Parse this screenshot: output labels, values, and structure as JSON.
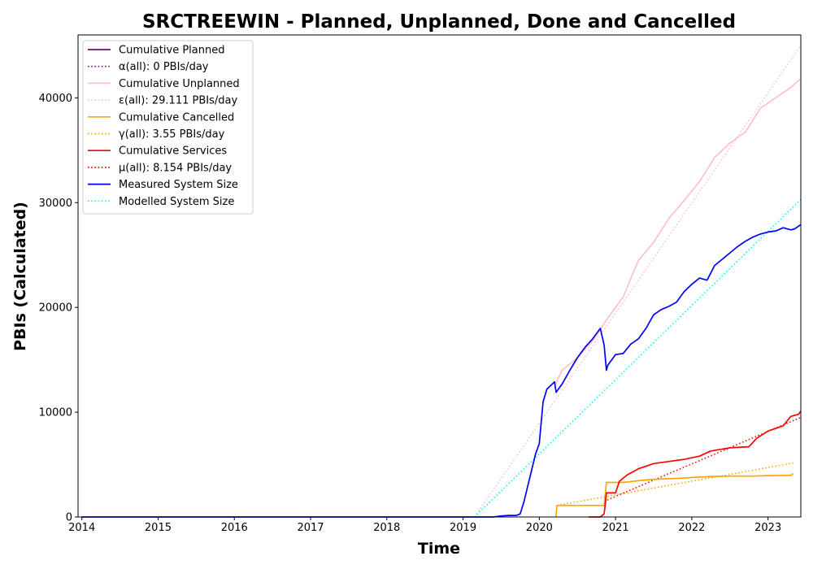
{
  "chart_data": {
    "type": "line",
    "title": "SRCTREEWIN - Planned, Unplanned, Done  and Cancelled",
    "xlabel": "Time",
    "ylabel": "PBIs (Calculated)",
    "xlim": [
      2013.95,
      2023.43
    ],
    "ylim": [
      0,
      46000
    ],
    "x_ticks": [
      2014,
      2015,
      2016,
      2017,
      2018,
      2019,
      2020,
      2021,
      2022,
      2023
    ],
    "y_ticks": [
      0,
      10000,
      20000,
      30000,
      40000
    ],
    "grid": false,
    "legend_position": "top-left",
    "series": [
      {
        "name": "Cumulative Planned",
        "color": "#800080",
        "style": "solid",
        "x": [],
        "y": []
      },
      {
        "name": "α(all): 0 PBIs/day",
        "color": "#800080",
        "style": "dotted",
        "x": [],
        "y": []
      },
      {
        "name": "Cumulative Unplanned",
        "color": "#ffc0cb",
        "style": "solid",
        "x": [
          2020.2,
          2020.3,
          2020.5,
          2020.7,
          2020.9,
          2021.1,
          2021.3,
          2021.5,
          2021.7,
          2021.9,
          2022.1,
          2022.3,
          2022.5,
          2022.7,
          2022.9,
          2023.1,
          2023.3,
          2023.42
        ],
        "y": [
          12500,
          14000,
          15200,
          16800,
          19000,
          21000,
          24500,
          26200,
          28500,
          30200,
          32000,
          34300,
          35700,
          36700,
          39000,
          40000,
          41000,
          41800
        ]
      },
      {
        "name": "ε(all): 29.111 PBIs/day",
        "color": "#ffc0cb",
        "style": "dotted",
        "x": [
          2019.15,
          2023.43
        ],
        "y": [
          0,
          45000
        ]
      },
      {
        "name": "Cumulative Cancelled",
        "color": "#ffa500",
        "style": "solid",
        "x": [
          2020.22,
          2020.23,
          2020.85,
          2020.88,
          2021.1,
          2021.35,
          2021.5,
          2021.85,
          2022.2,
          2022.5,
          2022.8,
          2023.0,
          2023.3,
          2023.33
        ],
        "y": [
          0,
          1100,
          1100,
          3300,
          3300,
          3500,
          3600,
          3700,
          3850,
          3900,
          3900,
          3950,
          3980,
          4150
        ]
      },
      {
        "name": "γ(all): 3.55 PBIs/day",
        "color": "#ffa500",
        "style": "dotted",
        "x": [
          2020.23,
          2023.33
        ],
        "y": [
          1100,
          5150
        ]
      },
      {
        "name": "Cumulative Services",
        "color": "#ff0000",
        "style": "solid",
        "x": [
          2020.65,
          2020.8,
          2020.85,
          2020.87,
          2020.88,
          2021.0,
          2021.05,
          2021.15,
          2021.3,
          2021.5,
          2021.7,
          2021.9,
          2022.1,
          2022.25,
          2022.5,
          2022.75,
          2022.85,
          2023.0,
          2023.2,
          2023.3,
          2023.4,
          2023.43
        ],
        "y": [
          0,
          0,
          300,
          1500,
          2300,
          2300,
          3400,
          4000,
          4600,
          5100,
          5300,
          5500,
          5800,
          6300,
          6600,
          6700,
          7500,
          8200,
          8700,
          9600,
          9800,
          10100
        ]
      },
      {
        "name": "μ(all): 8.154 PBIs/day",
        "color": "#ff0000",
        "style": "dotted",
        "x": [
          2020.85,
          2023.43
        ],
        "y": [
          1500,
          9500
        ]
      },
      {
        "name": "Measured System Size",
        "color": "#0000ff",
        "style": "solid",
        "x": [
          2014.0,
          2019.4,
          2019.5,
          2019.6,
          2019.7,
          2019.75,
          2019.8,
          2019.85,
          2019.9,
          2019.95,
          2020.0,
          2020.05,
          2020.1,
          2020.2,
          2020.22,
          2020.3,
          2020.4,
          2020.5,
          2020.6,
          2020.7,
          2020.8,
          2020.85,
          2020.88,
          2020.9,
          2021.0,
          2021.1,
          2021.2,
          2021.3,
          2021.4,
          2021.5,
          2021.6,
          2021.7,
          2021.8,
          2021.9,
          2022.0,
          2022.1,
          2022.2,
          2022.3,
          2022.4,
          2022.5,
          2022.6,
          2022.7,
          2022.8,
          2022.9,
          2023.0,
          2023.1,
          2023.2,
          2023.3,
          2023.35,
          2023.43
        ],
        "y": [
          0,
          0,
          100,
          150,
          150,
          300,
          1500,
          3000,
          4500,
          6000,
          7000,
          11000,
          12200,
          12900,
          11900,
          12700,
          14000,
          15200,
          16200,
          17000,
          18000,
          16400,
          14000,
          14500,
          15500,
          15600,
          16500,
          17000,
          18000,
          19300,
          19800,
          20100,
          20500,
          21500,
          22200,
          22800,
          22600,
          24000,
          24600,
          25200,
          25800,
          26300,
          26700,
          27000,
          27200,
          27300,
          27600,
          27400,
          27500,
          27900
        ]
      },
      {
        "name": "Modelled System Size",
        "color": "#00ffff",
        "style": "dotted",
        "x": [
          2019.15,
          2023.43
        ],
        "y": [
          0,
          30300
        ]
      }
    ]
  }
}
